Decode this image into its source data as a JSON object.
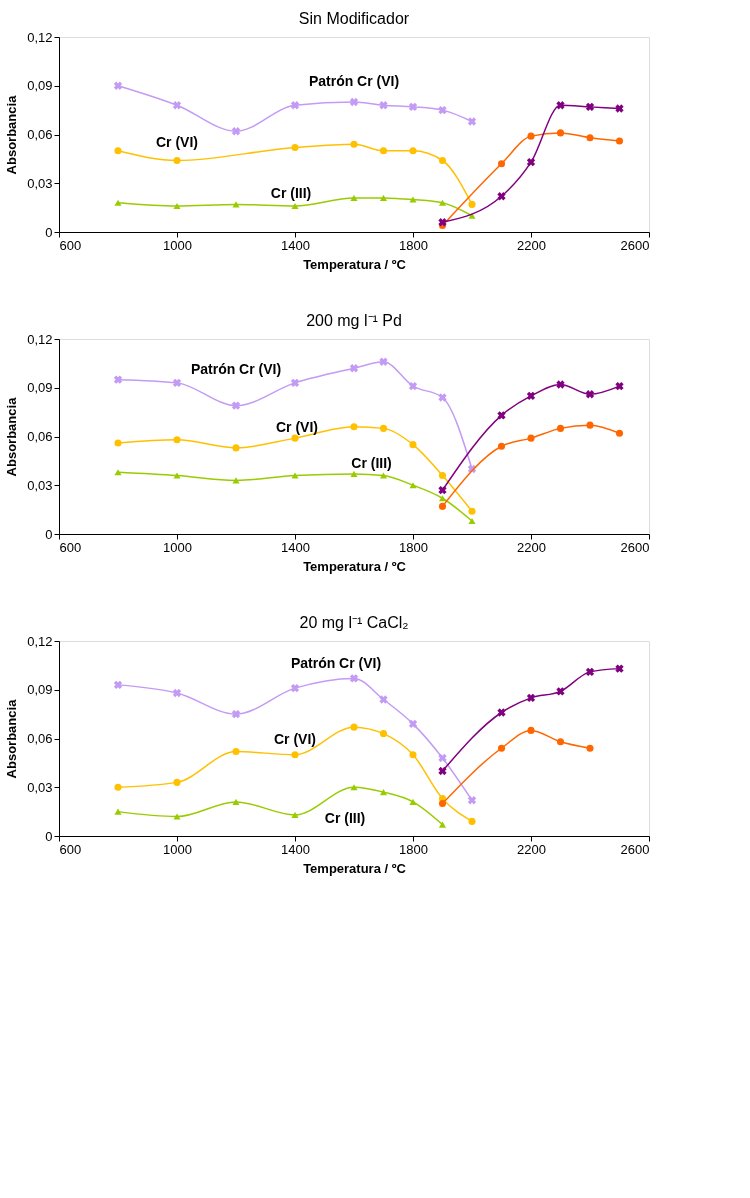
{
  "chart_data": [
    {
      "type": "line",
      "title": "Sin Modificador",
      "xlabel": "Temperatura / ºC",
      "ylabel": "Absorbancia",
      "xlim": [
        600,
        2600
      ],
      "xticks": [
        600,
        1000,
        1400,
        1800,
        2200,
        2600
      ],
      "ylim": [
        0,
        0.12
      ],
      "yticks": [
        0,
        {
          "value": 0.03,
          "label": "0,03"
        },
        {
          "value": 0.06,
          "label": "0,06"
        },
        {
          "value": 0.09,
          "label": "0,09"
        },
        {
          "value": 0.12,
          "label": "0,12"
        }
      ],
      "series": [
        {
          "name": "Patrón  Cr (VI)",
          "color": "#c39bf5",
          "marker": "cross",
          "x": [
            800,
            1000,
            1200,
            1400,
            1600,
            1700,
            1800,
            1900,
            2000
          ],
          "values": [
            0.09,
            0.078,
            0.062,
            0.078,
            0.08,
            0.078,
            0.077,
            0.075,
            0.068
          ]
        },
        {
          "name": "Cr (VI)",
          "color": "#ffc000",
          "marker": "circle",
          "x": [
            800,
            1000,
            1400,
            1600,
            1700,
            1800,
            1900,
            2000
          ],
          "values": [
            0.05,
            0.044,
            0.052,
            0.054,
            0.05,
            0.05,
            0.044,
            0.017
          ]
        },
        {
          "name": "Cr (III)",
          "color": "#99cc00",
          "marker": "triangle",
          "x": [
            800,
            1000,
            1200,
            1400,
            1600,
            1700,
            1800,
            1900,
            2000
          ],
          "values": [
            0.018,
            0.016,
            0.017,
            0.016,
            0.021,
            0.021,
            0.02,
            0.018,
            0.01
          ]
        },
        {
          "color": "#ff6600",
          "marker": "circle",
          "x": [
            1900,
            2100,
            2200,
            2300,
            2400,
            2500
          ],
          "values": [
            0.004,
            0.042,
            0.059,
            0.061,
            0.058,
            0.056
          ]
        },
        {
          "color": "#800080",
          "marker": "cross",
          "x": [
            1900,
            2100,
            2200,
            2300,
            2400,
            2500
          ],
          "values": [
            0.006,
            0.022,
            0.043,
            0.078,
            0.077,
            0.076
          ]
        }
      ]
    },
    {
      "type": "line",
      "title": "200 mg l⁻¹ Pd",
      "xlabel": "Temperatura / ºC",
      "ylabel": "Absorbancia",
      "xlim": [
        600,
        2600
      ],
      "xticks": [
        600,
        1000,
        1400,
        1800,
        2200,
        2600
      ],
      "ylim": [
        0,
        0.12
      ],
      "yticks": [
        0,
        {
          "value": 0.03,
          "label": "0,03"
        },
        {
          "value": 0.06,
          "label": "0,06"
        },
        {
          "value": 0.09,
          "label": "0,09"
        },
        {
          "value": 0.12,
          "label": "0,12"
        }
      ],
      "series": [
        {
          "name": "Patrón  Cr (VI)",
          "color": "#c39bf5",
          "marker": "cross",
          "x": [
            800,
            1000,
            1200,
            1400,
            1600,
            1700,
            1800,
            1900,
            2000
          ],
          "values": [
            0.095,
            0.093,
            0.079,
            0.093,
            0.102,
            0.106,
            0.091,
            0.084,
            0.04
          ]
        },
        {
          "name": "Cr (VI)",
          "color": "#ffc000",
          "marker": "circle",
          "x": [
            800,
            1000,
            1200,
            1400,
            1600,
            1700,
            1800,
            1900,
            2000
          ],
          "values": [
            0.056,
            0.058,
            0.053,
            0.059,
            0.066,
            0.065,
            0.055,
            0.036,
            0.014
          ]
        },
        {
          "name": "Cr (III)",
          "color": "#99cc00",
          "marker": "triangle",
          "x": [
            800,
            1000,
            1200,
            1400,
            1600,
            1700,
            1800,
            1900,
            2000
          ],
          "values": [
            0.038,
            0.036,
            0.033,
            0.036,
            0.037,
            0.036,
            0.03,
            0.022,
            0.008
          ]
        },
        {
          "color": "#ff6600",
          "marker": "circle",
          "x": [
            1900,
            2100,
            2200,
            2300,
            2400,
            2500
          ],
          "values": [
            0.017,
            0.054,
            0.059,
            0.065,
            0.067,
            0.062
          ]
        },
        {
          "color": "#800080",
          "marker": "cross",
          "x": [
            1900,
            2100,
            2200,
            2300,
            2400,
            2500
          ],
          "values": [
            0.027,
            0.073,
            0.085,
            0.092,
            0.086,
            0.091
          ]
        }
      ]
    },
    {
      "type": "line",
      "title": "20 mg l⁻¹ CaCl₂",
      "xlabel": "Temperatura / ºC",
      "ylabel": "Absorbancia",
      "xlim": [
        600,
        2600
      ],
      "xticks": [
        600,
        1000,
        1400,
        1800,
        2200,
        2600
      ],
      "ylim": [
        0,
        0.12
      ],
      "yticks": [
        0,
        {
          "value": 0.03,
          "label": "0,03"
        },
        {
          "value": 0.06,
          "label": "0,06"
        },
        {
          "value": 0.09,
          "label": "0,09"
        },
        {
          "value": 0.12,
          "label": "0,12"
        }
      ],
      "series": [
        {
          "name": "Patrón  Cr (VI)",
          "color": "#c39bf5",
          "marker": "cross",
          "x": [
            800,
            1000,
            1200,
            1400,
            1600,
            1700,
            1800,
            1900,
            2000
          ],
          "values": [
            0.093,
            0.088,
            0.075,
            0.091,
            0.097,
            0.084,
            0.069,
            0.048,
            0.022
          ]
        },
        {
          "name": "Cr (VI)",
          "color": "#ffc000",
          "marker": "circle",
          "x": [
            800,
            1000,
            1200,
            1400,
            1600,
            1700,
            1800,
            1900,
            2000
          ],
          "values": [
            0.03,
            0.033,
            0.052,
            0.05,
            0.067,
            0.063,
            0.05,
            0.023,
            0.009
          ]
        },
        {
          "name": "Cr (III)",
          "color": "#99cc00",
          "marker": "triangle",
          "x": [
            800,
            1000,
            1200,
            1400,
            1600,
            1700,
            1800,
            1900
          ],
          "values": [
            0.015,
            0.012,
            0.021,
            0.013,
            0.03,
            0.027,
            0.021,
            0.007
          ]
        },
        {
          "color": "#ff6600",
          "marker": "circle",
          "x": [
            1900,
            2100,
            2200,
            2300,
            2400
          ],
          "values": [
            0.02,
            0.054,
            0.065,
            0.058,
            0.054
          ]
        },
        {
          "color": "#800080",
          "marker": "cross",
          "x": [
            1900,
            2100,
            2200,
            2300,
            2400,
            2500
          ],
          "values": [
            0.04,
            0.076,
            0.085,
            0.089,
            0.101,
            0.103
          ]
        }
      ]
    }
  ]
}
